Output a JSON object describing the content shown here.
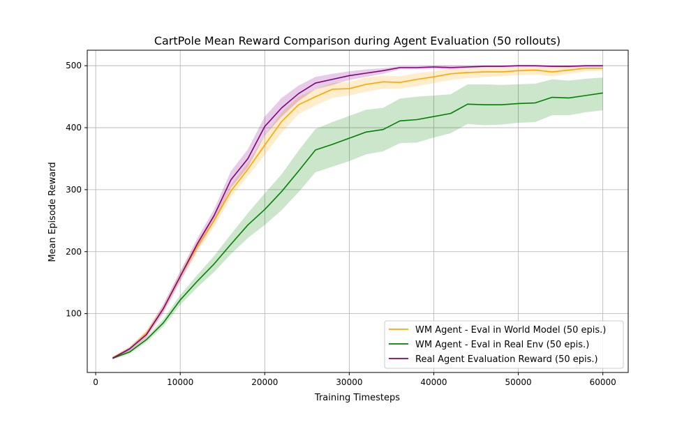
{
  "chart_data": {
    "type": "line",
    "title": "CartPole Mean Reward Comparison during Agent Evaluation (50 rollouts)",
    "xlabel": "Training Timesteps",
    "ylabel": "Mean Episode Reward",
    "xlim": [
      -1000,
      63000
    ],
    "ylim": [
      5,
      525
    ],
    "xticks": [
      0,
      10000,
      20000,
      30000,
      40000,
      50000,
      60000
    ],
    "yticks": [
      100,
      200,
      300,
      400,
      500
    ],
    "grid": true,
    "legend_position": "lower-right",
    "x": [
      2000,
      4000,
      6000,
      8000,
      10000,
      12000,
      14000,
      16000,
      18000,
      20000,
      22000,
      24000,
      26000,
      28000,
      30000,
      32000,
      34000,
      36000,
      38000,
      40000,
      42000,
      44000,
      46000,
      48000,
      50000,
      52000,
      54000,
      56000,
      58000,
      60000
    ],
    "series": [
      {
        "name": "WM Agent - Eval in World Model (50 epis.)",
        "color": "#ffa500",
        "band_opacity": 0.2,
        "values": [
          29,
          43,
          68,
          108,
          160,
          208,
          250,
          298,
          333,
          372,
          410,
          437,
          450,
          462,
          463,
          470,
          474,
          473,
          478,
          482,
          487,
          489,
          490,
          490,
          492,
          493,
          490,
          493,
          496,
          496
        ],
        "lower": [
          27,
          40,
          63,
          102,
          152,
          199,
          240,
          288,
          322,
          356,
          392,
          422,
          436,
          448,
          452,
          458,
          463,
          463,
          467,
          472,
          477,
          480,
          482,
          483,
          485,
          486,
          483,
          487,
          491,
          492
        ],
        "upper": [
          31,
          46,
          73,
          114,
          168,
          217,
          260,
          308,
          344,
          387,
          425,
          450,
          462,
          472,
          474,
          481,
          484,
          483,
          488,
          491,
          495,
          496,
          497,
          497,
          498,
          499,
          497,
          499,
          500,
          500
        ]
      },
      {
        "name": "WM Agent - Eval in Real Env (50 epis.)",
        "color": "#008000",
        "band_opacity": 0.2,
        "values": [
          28,
          38,
          58,
          85,
          122,
          152,
          180,
          212,
          243,
          268,
          297,
          330,
          364,
          373,
          383,
          393,
          397,
          411,
          413,
          418,
          423,
          438,
          437,
          437,
          439,
          440,
          449,
          448,
          452,
          456
        ],
        "lower": [
          26,
          35,
          54,
          79,
          114,
          142,
          167,
          196,
          222,
          243,
          267,
          296,
          328,
          337,
          346,
          357,
          362,
          375,
          376,
          384,
          391,
          406,
          404,
          405,
          408,
          409,
          420,
          420,
          425,
          428
        ],
        "upper": [
          30,
          41,
          62,
          91,
          130,
          162,
          193,
          228,
          262,
          294,
          325,
          363,
          398,
          409,
          419,
          429,
          432,
          447,
          450,
          452,
          454,
          470,
          470,
          469,
          470,
          471,
          478,
          476,
          479,
          481
        ]
      },
      {
        "name": "Real Agent Evaluation Reward (50 epis.)",
        "color": "#800080",
        "band_opacity": 0.2,
        "values": [
          28,
          43,
          66,
          108,
          160,
          212,
          258,
          316,
          350,
          402,
          432,
          455,
          472,
          478,
          484,
          488,
          492,
          497,
          497,
          498,
          497,
          498,
          499,
          499,
          500,
          500,
          499,
          499,
          500,
          500
        ],
        "lower": [
          26,
          40,
          61,
          101,
          152,
          203,
          248,
          303,
          336,
          387,
          418,
          443,
          462,
          469,
          477,
          482,
          487,
          494,
          494,
          495,
          494,
          496,
          497,
          497,
          498,
          498,
          497,
          497,
          498,
          498
        ],
        "upper": [
          30,
          46,
          71,
          115,
          168,
          221,
          268,
          330,
          365,
          418,
          448,
          468,
          482,
          487,
          491,
          494,
          496,
          499,
          499,
          500,
          500,
          500,
          500,
          500,
          500,
          500,
          500,
          500,
          500,
          500
        ]
      }
    ]
  }
}
